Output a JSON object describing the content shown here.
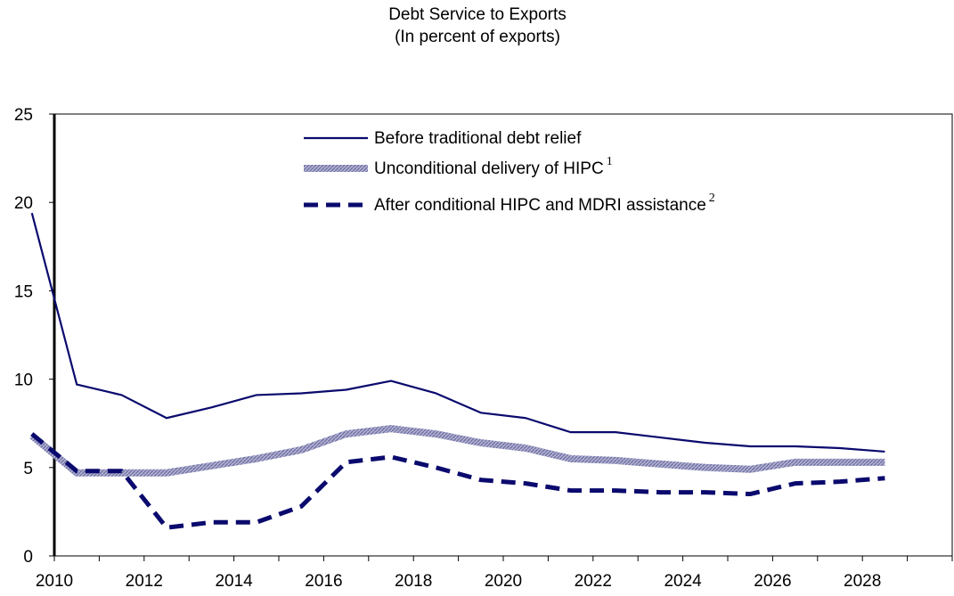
{
  "chart_data": {
    "type": "line",
    "title": "Debt Service to Exports",
    "subtitle": "(In percent of exports)",
    "xlabel": "",
    "ylabel": "",
    "ylim": [
      0,
      25
    ],
    "yticks": [
      "0",
      "5",
      "10",
      "15",
      "20",
      "25"
    ],
    "xlim": [
      2009.5,
      2029.5
    ],
    "xticks": [
      "2010",
      "2012",
      "2014",
      "2016",
      "2018",
      "2020",
      "2022",
      "2024",
      "2026",
      "2028"
    ],
    "x": [
      2009,
      2010,
      2011,
      2012,
      2013,
      2014,
      2015,
      2016,
      2017,
      2018,
      2019,
      2020,
      2021,
      2022,
      2023,
      2024,
      2025,
      2026,
      2027,
      2028
    ],
    "grid": false,
    "legend_position": "top-right",
    "series": [
      {
        "name": "Before traditional debt relief",
        "sup": "",
        "color": "#0a0a6e",
        "style": "solid",
        "values": [
          19.4,
          9.7,
          9.1,
          7.8,
          8.4,
          9.1,
          9.2,
          9.4,
          9.9,
          9.2,
          8.1,
          7.8,
          7.0,
          7.0,
          6.7,
          6.4,
          6.2,
          6.2,
          6.1,
          5.9
        ]
      },
      {
        "name": "Unconditional delivery of HIPC",
        "sup": "1",
        "color": "#8888b8",
        "style": "hatched",
        "values": [
          6.8,
          4.7,
          4.7,
          4.7,
          5.1,
          5.5,
          6.0,
          6.9,
          7.2,
          6.9,
          6.4,
          6.1,
          5.5,
          5.4,
          5.2,
          5.0,
          4.9,
          5.3,
          5.3,
          5.3
        ]
      },
      {
        "name": "After conditional HIPC and MDRI assistance",
        "sup": "2",
        "color": "#0a0a6e",
        "style": "dashed",
        "values": [
          6.9,
          4.8,
          4.8,
          1.6,
          1.9,
          1.9,
          2.8,
          5.3,
          5.6,
          5.0,
          4.3,
          4.1,
          3.7,
          3.7,
          3.6,
          3.6,
          3.5,
          4.1,
          4.2,
          4.4
        ]
      }
    ]
  }
}
